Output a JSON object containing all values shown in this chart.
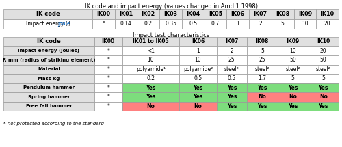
{
  "title1": "IK code and impact energy (values changed in Amd 1:1998)",
  "title2": "Impact test characteristics",
  "footnote": "* not protected according to the standard",
  "t1_headers": [
    "IK code",
    "IK00",
    "IK01",
    "IK02",
    "IK03",
    "IK04",
    "IK05",
    "IK06",
    "IK07",
    "IK08",
    "IK09",
    "IK10"
  ],
  "t1_row": [
    "Impact energy (joule)",
    "*",
    "0.14",
    "0.2",
    "0.35",
    "0.5",
    "0.7",
    "1",
    "2",
    "5",
    "10",
    "20"
  ],
  "joule_color": "#0066cc",
  "t2_headers": [
    "IK code",
    "IK00",
    "IK01 to IK05",
    "IK06",
    "IK07",
    "IK08",
    "IK09",
    "IK10"
  ],
  "t2_rows": [
    [
      "Impact energy (joules)",
      "*",
      "<1",
      "1",
      "2",
      "5",
      "10",
      "20"
    ],
    [
      "R mm (radius of striking element)",
      "*",
      "10",
      "10",
      "25",
      "25",
      "50",
      "50"
    ],
    [
      "Material",
      "*",
      "polyamide¹",
      "polyamide²",
      "steel²",
      "steel²",
      "steel²",
      "steel²"
    ],
    [
      "Mass kg",
      "*",
      "0.2",
      "0.5",
      "0.5",
      "1.7",
      "5",
      "5"
    ],
    [
      "Pendulum hammer",
      "*",
      "Yes",
      "Yes",
      "Yes",
      "Yes",
      "Yes",
      "Yes"
    ],
    [
      "Spring hammer",
      "*",
      "Yes",
      "Yes",
      "Yes",
      "No",
      "No",
      "No"
    ],
    [
      "Free fall hammer",
      "*",
      "No",
      "No",
      "Yes",
      "Yes",
      "Yes",
      "Yes"
    ]
  ],
  "green": "#7ddd7d",
  "red": "#ff8080",
  "white": "#ffffff",
  "hdr_bg": "#e0e0e0",
  "border": "#999999",
  "hammer_colors": {
    "Pendulum hammer": [
      "white",
      "green",
      "green",
      "green",
      "green",
      "green",
      "green"
    ],
    "Spring hammer": [
      "white",
      "green",
      "green",
      "green",
      "red",
      "red",
      "red"
    ],
    "Free fall hammer": [
      "white",
      "red",
      "red",
      "green",
      "green",
      "green",
      "green"
    ]
  },
  "fig_w": 5.0,
  "fig_h": 2.15,
  "dpi": 100
}
